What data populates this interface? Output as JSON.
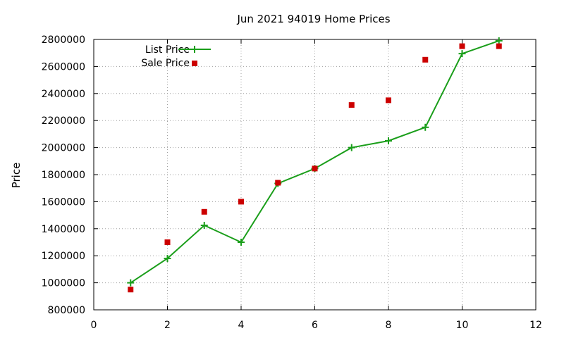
{
  "chart_data": {
    "type": "line",
    "title": "Jun 2021 94019 Home Prices",
    "xlabel": "",
    "ylabel": "Price",
    "xlim": [
      0,
      12
    ],
    "ylim": [
      800000,
      2800000
    ],
    "xticks": [
      0,
      2,
      4,
      6,
      8,
      10,
      12
    ],
    "yticks": [
      800000,
      1000000,
      1200000,
      1400000,
      1600000,
      1800000,
      2000000,
      2200000,
      2400000,
      2600000,
      2800000
    ],
    "grid": true,
    "legend_position": "top-left",
    "series": [
      {
        "name": "List Price",
        "style": "line-plus",
        "color": "#1a9e1a",
        "x": [
          1,
          2,
          3,
          4,
          5,
          6,
          7,
          8,
          9,
          10,
          11
        ],
        "y": [
          1000000,
          1180000,
          1425000,
          1300000,
          1735000,
          1845000,
          2000000,
          2050000,
          2150000,
          2695000,
          2790000
        ]
      },
      {
        "name": "Sale Price",
        "style": "square-points",
        "color": "#cc0000",
        "x": [
          1,
          2,
          3,
          4,
          5,
          6,
          7,
          8,
          9,
          10,
          11
        ],
        "y": [
          950000,
          1300000,
          1525000,
          1600000,
          1740000,
          1845000,
          2315000,
          2350000,
          2650000,
          2750000,
          2750000
        ]
      }
    ]
  }
}
